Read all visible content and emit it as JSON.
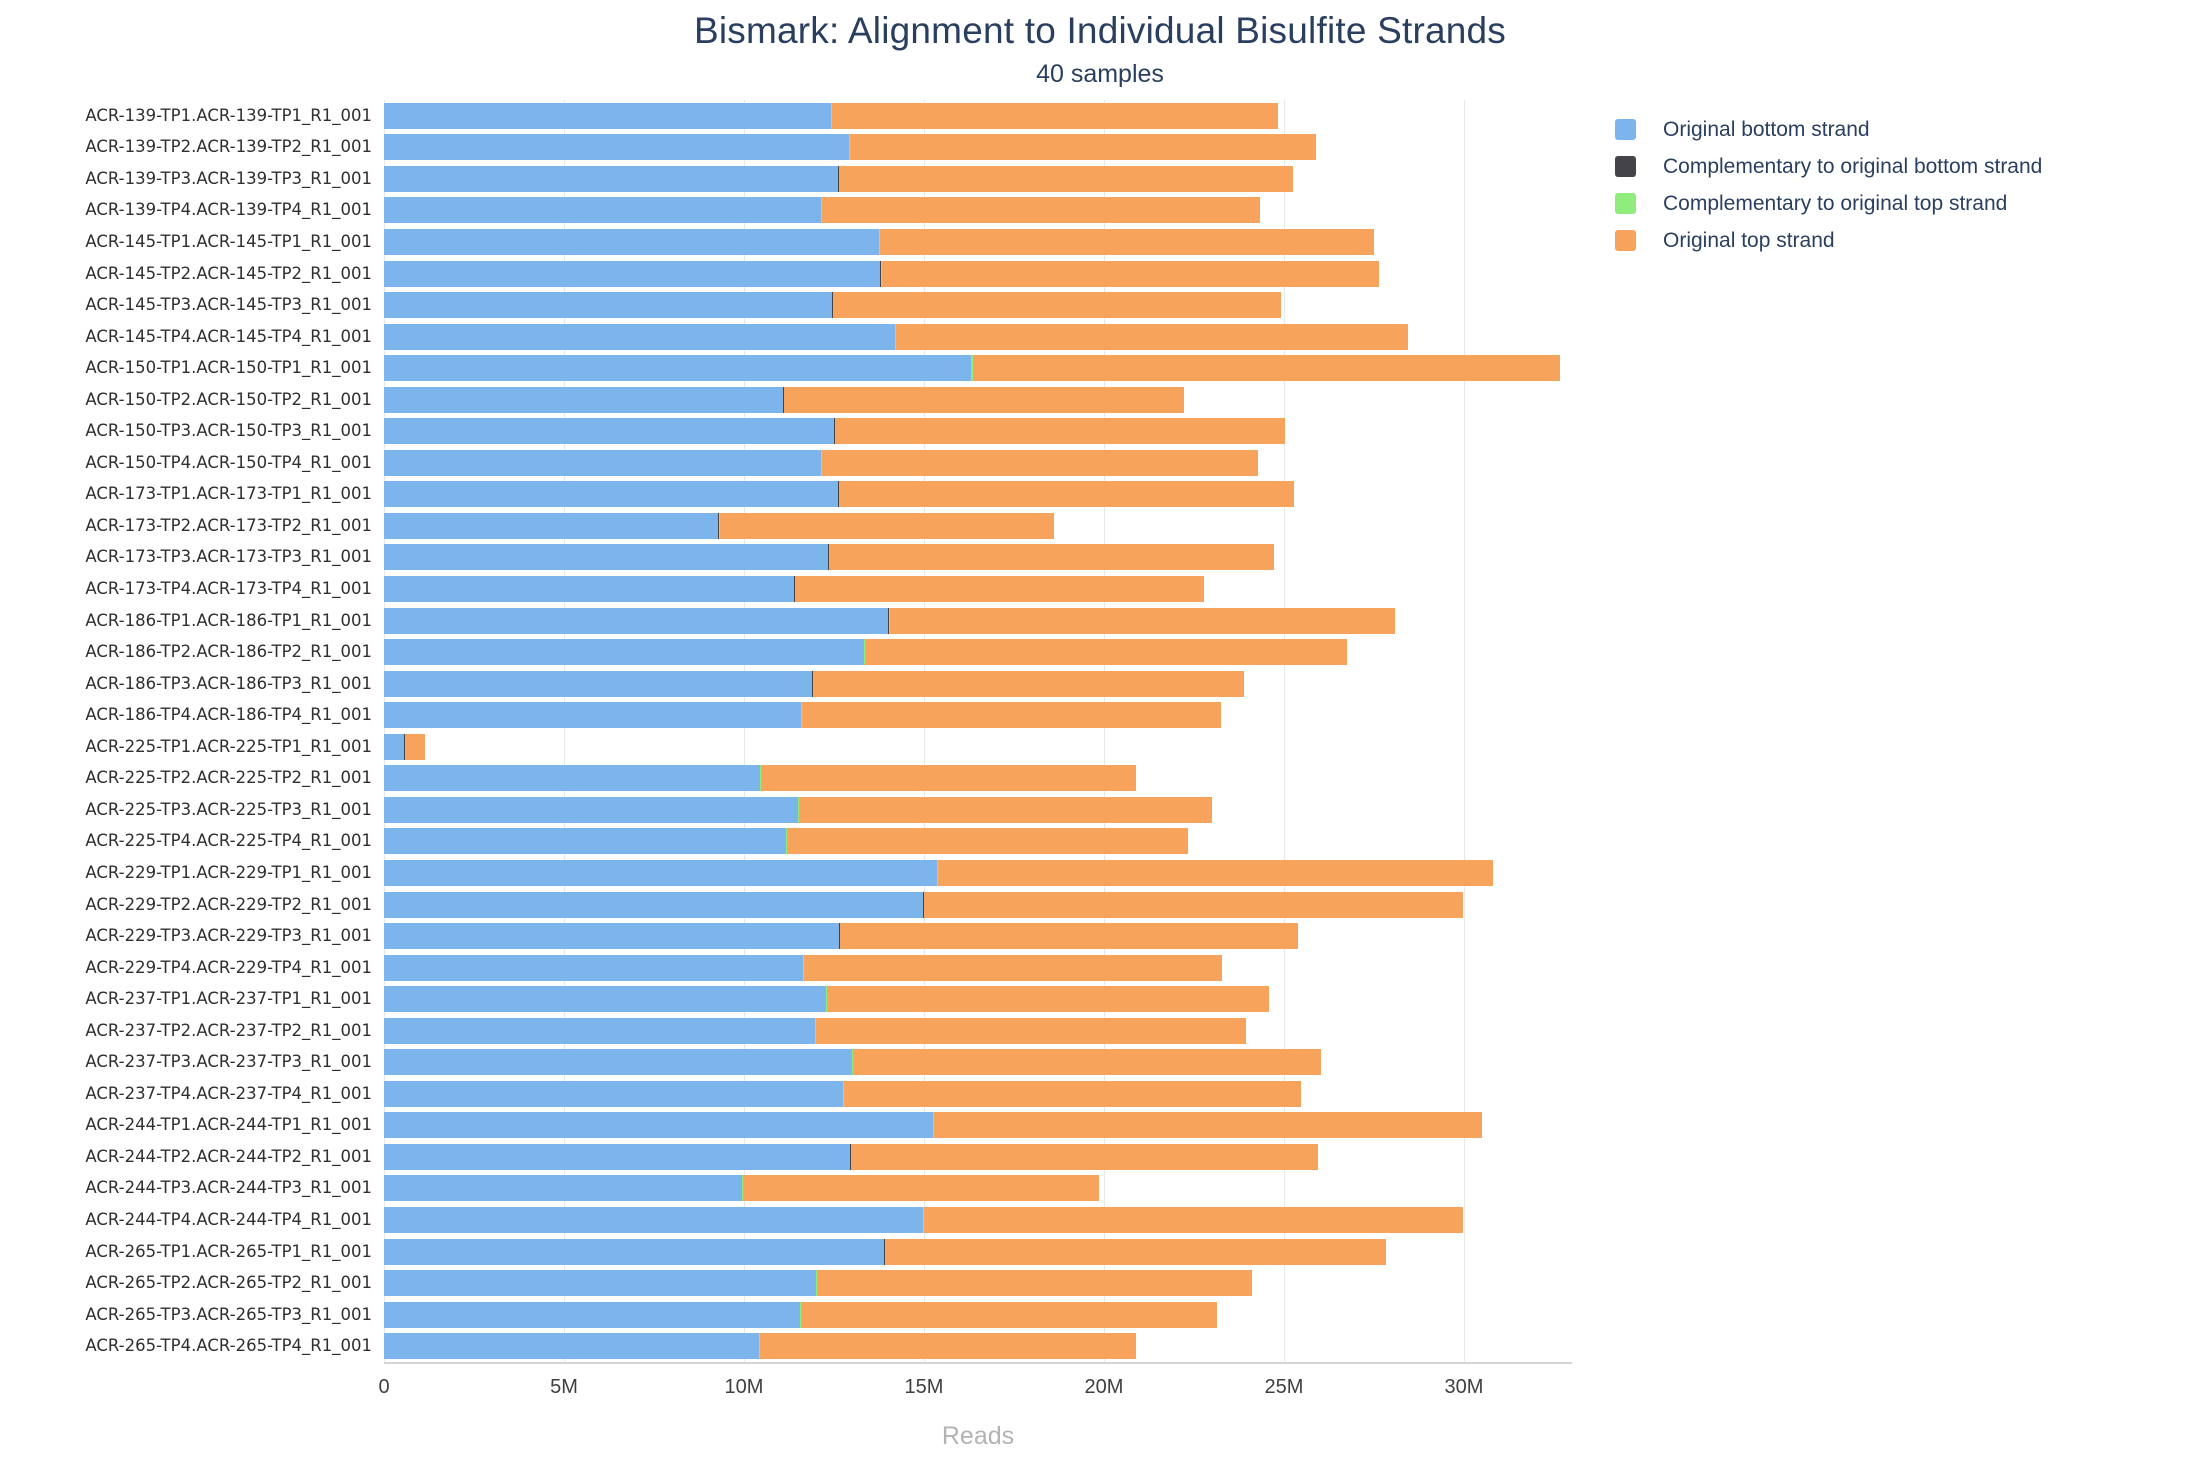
{
  "chart": {
    "title": "Bismark: Alignment to Individual Bisulfite Strands",
    "subtitle": "40 samples",
    "xlabel": "Reads"
  },
  "axis": {
    "x_max_millions": 33.0,
    "ticks": [
      {
        "label": "0",
        "value": 0
      },
      {
        "label": "5M",
        "value": 5
      },
      {
        "label": "10M",
        "value": 10
      },
      {
        "label": "15M",
        "value": 15
      },
      {
        "label": "20M",
        "value": 20
      },
      {
        "label": "25M",
        "value": 25
      },
      {
        "label": "30M",
        "value": 30
      }
    ]
  },
  "legend": [
    {
      "key": "ob",
      "label": "Original bottom strand",
      "color": "#7cb5ec"
    },
    {
      "key": "ctob",
      "label": "Complementary to original bottom strand",
      "color": "#434348"
    },
    {
      "key": "ctot",
      "label": "Complementary to original top strand",
      "color": "#90ed7d"
    },
    {
      "key": "ot",
      "label": "Original top strand",
      "color": "#f7a35c"
    }
  ],
  "chart_data": {
    "type": "bar",
    "orientation": "horizontal",
    "stacked": true,
    "title": "Bismark: Alignment to Individual Bisulfite Strands",
    "subtitle": "40 samples",
    "xlabel": "Reads",
    "unit": "reads (millions)",
    "x_range": [
      0,
      33
    ],
    "grid": true,
    "legend_position": "top-right",
    "categories": [
      "ACR-139-TP1.ACR-139-TP1_R1_001",
      "ACR-139-TP2.ACR-139-TP2_R1_001",
      "ACR-139-TP3.ACR-139-TP3_R1_001",
      "ACR-139-TP4.ACR-139-TP4_R1_001",
      "ACR-145-TP1.ACR-145-TP1_R1_001",
      "ACR-145-TP2.ACR-145-TP2_R1_001",
      "ACR-145-TP3.ACR-145-TP3_R1_001",
      "ACR-145-TP4.ACR-145-TP4_R1_001",
      "ACR-150-TP1.ACR-150-TP1_R1_001",
      "ACR-150-TP2.ACR-150-TP2_R1_001",
      "ACR-150-TP3.ACR-150-TP3_R1_001",
      "ACR-150-TP4.ACR-150-TP4_R1_001",
      "ACR-173-TP1.ACR-173-TP1_R1_001",
      "ACR-173-TP2.ACR-173-TP2_R1_001",
      "ACR-173-TP3.ACR-173-TP3_R1_001",
      "ACR-173-TP4.ACR-173-TP4_R1_001",
      "ACR-186-TP1.ACR-186-TP1_R1_001",
      "ACR-186-TP2.ACR-186-TP2_R1_001",
      "ACR-186-TP3.ACR-186-TP3_R1_001",
      "ACR-186-TP4.ACR-186-TP4_R1_001",
      "ACR-225-TP1.ACR-225-TP1_R1_001",
      "ACR-225-TP2.ACR-225-TP2_R1_001",
      "ACR-225-TP3.ACR-225-TP3_R1_001",
      "ACR-225-TP4.ACR-225-TP4_R1_001",
      "ACR-229-TP1.ACR-229-TP1_R1_001",
      "ACR-229-TP2.ACR-229-TP2_R1_001",
      "ACR-229-TP3.ACR-229-TP3_R1_001",
      "ACR-229-TP4.ACR-229-TP4_R1_001",
      "ACR-237-TP1.ACR-237-TP1_R1_001",
      "ACR-237-TP2.ACR-237-TP2_R1_001",
      "ACR-237-TP3.ACR-237-TP3_R1_001",
      "ACR-237-TP4.ACR-237-TP4_R1_001",
      "ACR-244-TP1.ACR-244-TP1_R1_001",
      "ACR-244-TP2.ACR-244-TP2_R1_001",
      "ACR-244-TP3.ACR-244-TP3_R1_001",
      "ACR-244-TP4.ACR-244-TP4_R1_001",
      "ACR-265-TP1.ACR-265-TP1_R1_001",
      "ACR-265-TP2.ACR-265-TP2_R1_001",
      "ACR-265-TP3.ACR-265-TP3_R1_001",
      "ACR-265-TP4.ACR-265-TP4_R1_001"
    ],
    "series": [
      {
        "name": "Original bottom strand",
        "key": "ob",
        "color": "#7cb5ec",
        "values": [
          12.42,
          12.92,
          12.62,
          12.14,
          13.75,
          13.79,
          12.45,
          14.19,
          16.3,
          11.09,
          12.51,
          12.13,
          12.62,
          9.29,
          12.34,
          11.4,
          14.0,
          13.32,
          11.9,
          11.58,
          0.56,
          10.44,
          11.49,
          11.17,
          15.36,
          14.98,
          12.65,
          11.63,
          12.28,
          11.97,
          13.0,
          12.74,
          15.24,
          12.95,
          9.94,
          14.97,
          13.9,
          12.0,
          11.55,
          10.42
        ]
      },
      {
        "name": "Complementary to original bottom strand",
        "key": "ctob",
        "color": "#434348",
        "values": [
          0.01,
          0.01,
          0.01,
          0.01,
          0.01,
          0.01,
          0.01,
          0.01,
          0.01,
          0.01,
          0.01,
          0.01,
          0.01,
          0.01,
          0.01,
          0.01,
          0.04,
          0.01,
          0.01,
          0.01,
          0.01,
          0.01,
          0.01,
          0.01,
          0.01,
          0.01,
          0.01,
          0.01,
          0.01,
          0.01,
          0.01,
          0.01,
          0.01,
          0.01,
          0.01,
          0.01,
          0.01,
          0.01,
          0.01,
          0.01
        ]
      },
      {
        "name": "Complementary to original top strand",
        "key": "ctot",
        "color": "#90ed7d",
        "values": [
          0.02,
          0.02,
          0.02,
          0.02,
          0.02,
          0.02,
          0.02,
          0.02,
          0.05,
          0.02,
          0.02,
          0.02,
          0.02,
          0.02,
          0.02,
          0.02,
          0.02,
          0.02,
          0.02,
          0.02,
          0.01,
          0.02,
          0.02,
          0.02,
          0.02,
          0.02,
          0.02,
          0.02,
          0.02,
          0.02,
          0.02,
          0.02,
          0.02,
          0.02,
          0.02,
          0.02,
          0.02,
          0.02,
          0.02,
          0.02
        ]
      },
      {
        "name": "Original top strand",
        "key": "ot",
        "color": "#f7a35c",
        "values": [
          12.37,
          12.93,
          12.61,
          12.17,
          13.73,
          13.81,
          12.43,
          14.22,
          16.3,
          11.11,
          12.49,
          12.13,
          12.64,
          9.29,
          12.35,
          11.35,
          14.03,
          13.39,
          11.96,
          11.63,
          0.57,
          10.42,
          11.47,
          11.12,
          15.41,
          14.95,
          12.7,
          11.63,
          12.28,
          11.95,
          13.0,
          12.7,
          15.22,
          12.96,
          9.9,
          14.97,
          13.91,
          12.07,
          11.57,
          10.44
        ]
      }
    ]
  }
}
